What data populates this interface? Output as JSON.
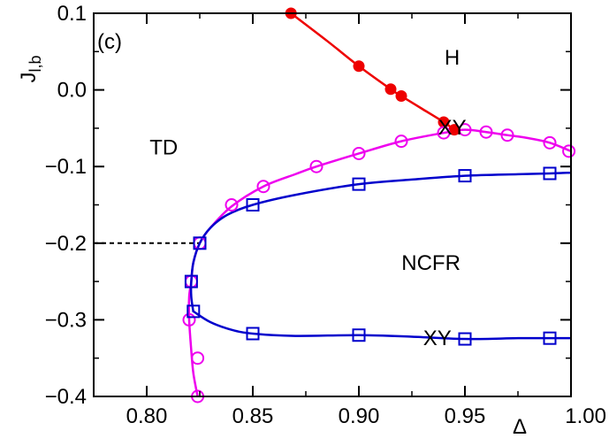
{
  "chart_data": {
    "type": "line",
    "title": "",
    "panel_label": "(c)",
    "xlabel": "Δ",
    "ylabel_main": "J",
    "ylabel_sub": "l,b",
    "xlim": [
      0.775,
      1.0
    ],
    "ylim": [
      -0.4,
      0.1
    ],
    "xticks": [
      0.8,
      0.85,
      0.9,
      0.95,
      1.0
    ],
    "xtick_labels": [
      "0.80",
      "0.85",
      "0.90",
      "0.95",
      "1.00"
    ],
    "yticks": [
      -0.4,
      -0.3,
      -0.2,
      -0.1,
      0.0,
      0.1
    ],
    "ytick_labels": [
      "−0.4",
      "−0.3",
      "−0.2",
      "−0.1",
      "0.0",
      "0.1"
    ],
    "grid": false,
    "legend": "none",
    "colors": {
      "red": "#ee0000",
      "magenta": "#ee00ee",
      "blue": "#0000cc",
      "black": "#000000"
    },
    "series": [
      {
        "marker": "filled-circle",
        "color": "#ee0000",
        "points": [
          [
            0.868,
            0.1
          ],
          [
            0.9,
            0.031
          ],
          [
            0.915,
            0.001
          ],
          [
            0.92,
            -0.008
          ],
          [
            0.94,
            -0.042
          ],
          [
            0.945,
            -0.052
          ]
        ],
        "curve": [
          [
            0.868,
            0.1
          ],
          [
            0.885,
            0.064
          ],
          [
            0.9,
            0.031
          ],
          [
            0.915,
            0.001
          ],
          [
            0.92,
            -0.008
          ],
          [
            0.93,
            -0.025
          ],
          [
            0.94,
            -0.042
          ],
          [
            0.945,
            -0.052
          ]
        ]
      },
      {
        "marker": "open-circle",
        "color": "#ee00ee",
        "points": [
          [
            0.824,
            -0.4
          ],
          [
            0.824,
            -0.35
          ],
          [
            0.82,
            -0.3
          ],
          [
            0.821,
            -0.25
          ],
          [
            0.825,
            -0.2
          ],
          [
            0.84,
            -0.15
          ],
          [
            0.855,
            -0.126
          ],
          [
            0.88,
            -0.1
          ],
          [
            0.9,
            -0.083
          ],
          [
            0.92,
            -0.067
          ],
          [
            0.94,
            -0.056
          ],
          [
            0.95,
            -0.052
          ],
          [
            0.96,
            -0.055
          ],
          [
            0.97,
            -0.059
          ],
          [
            0.99,
            -0.069
          ],
          [
            0.999,
            -0.08
          ]
        ],
        "curve": [
          [
            0.824,
            -0.4
          ],
          [
            0.822,
            -0.37
          ],
          [
            0.821,
            -0.34
          ],
          [
            0.82,
            -0.3
          ],
          [
            0.82,
            -0.27
          ],
          [
            0.821,
            -0.25
          ],
          [
            0.822,
            -0.225
          ],
          [
            0.825,
            -0.2
          ],
          [
            0.83,
            -0.18
          ],
          [
            0.84,
            -0.152
          ],
          [
            0.855,
            -0.126
          ],
          [
            0.87,
            -0.11
          ],
          [
            0.88,
            -0.1
          ],
          [
            0.9,
            -0.083
          ],
          [
            0.92,
            -0.067
          ],
          [
            0.94,
            -0.056
          ],
          [
            0.95,
            -0.052
          ],
          [
            0.96,
            -0.055
          ],
          [
            0.97,
            -0.059
          ],
          [
            0.98,
            -0.063
          ],
          [
            0.99,
            -0.069
          ],
          [
            1.0,
            -0.08
          ]
        ]
      },
      {
        "marker": "open-square",
        "color": "#0000cc",
        "points": [
          [
            0.825,
            -0.2
          ],
          [
            0.85,
            -0.15
          ],
          [
            0.9,
            -0.123
          ],
          [
            0.95,
            -0.112
          ],
          [
            0.99,
            -0.109
          ]
        ],
        "curve": [
          [
            0.822,
            -0.29
          ],
          [
            0.821,
            -0.27
          ],
          [
            0.821,
            -0.25
          ],
          [
            0.822,
            -0.225
          ],
          [
            0.825,
            -0.2
          ],
          [
            0.83,
            -0.18
          ],
          [
            0.838,
            -0.163
          ],
          [
            0.85,
            -0.15
          ],
          [
            0.87,
            -0.137
          ],
          [
            0.9,
            -0.123
          ],
          [
            0.925,
            -0.117
          ],
          [
            0.95,
            -0.112
          ],
          [
            0.975,
            -0.11
          ],
          [
            0.99,
            -0.109
          ],
          [
            1.0,
            -0.108
          ]
        ]
      },
      {
        "marker": "open-square",
        "color": "#0000cc",
        "points": [
          [
            0.822,
            -0.289
          ],
          [
            0.85,
            -0.318
          ],
          [
            0.9,
            -0.32
          ],
          [
            0.95,
            -0.325
          ],
          [
            0.99,
            -0.324
          ]
        ],
        "curve": [
          [
            0.822,
            -0.289
          ],
          [
            0.83,
            -0.303
          ],
          [
            0.84,
            -0.313
          ],
          [
            0.85,
            -0.318
          ],
          [
            0.87,
            -0.321
          ],
          [
            0.9,
            -0.32
          ],
          [
            0.925,
            -0.322
          ],
          [
            0.95,
            -0.325
          ],
          [
            0.975,
            -0.324
          ],
          [
            0.99,
            -0.324
          ],
          [
            1.0,
            -0.324
          ]
        ]
      }
    ],
    "extra_markers": [
      {
        "marker": "open-square",
        "color": "#0000cc",
        "x": 0.821,
        "y": -0.25
      }
    ],
    "dashed_line": {
      "from": [
        0.775,
        -0.2
      ],
      "to": [
        0.825,
        -0.2
      ],
      "color": "#000000"
    },
    "region_labels": [
      {
        "text": "H",
        "x": 0.944,
        "y": 0.033
      },
      {
        "text": "TD",
        "x": 0.808,
        "y": -0.084
      },
      {
        "text": "XY",
        "x": 0.944,
        "y": -0.058
      },
      {
        "text": "NCFR",
        "x": 0.934,
        "y": -0.235
      },
      {
        "text": "XY",
        "x": 0.937,
        "y": -0.333
      }
    ]
  }
}
